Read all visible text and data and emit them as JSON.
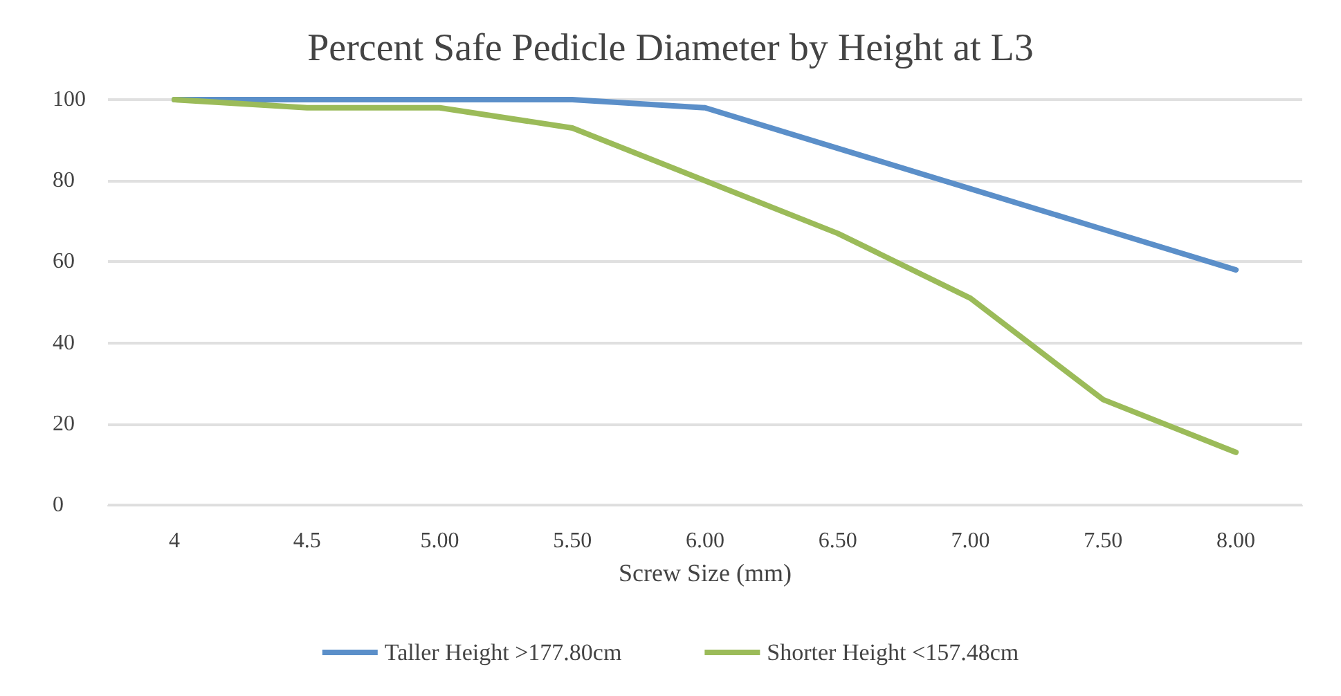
{
  "chart_data": {
    "type": "line",
    "title": "Percent Safe Pedicle Diameter by Height at L3",
    "xlabel": "Screw Size (mm)",
    "categories": [
      "4",
      "4.5",
      "5.00",
      "5.50",
      "6.00",
      "6.50",
      "7.00",
      "7.50",
      "8.00"
    ],
    "series": [
      {
        "name": "Taller Height >177.80cm",
        "color": "#5b8fc9",
        "values": [
          100,
          100,
          100,
          100,
          98,
          88,
          78,
          68,
          58
        ]
      },
      {
        "name": "Shorter Height <157.48cm",
        "color": "#9bbb59",
        "values": [
          100,
          98,
          98,
          93,
          80,
          67,
          51,
          26,
          13
        ]
      }
    ],
    "ylim": [
      0,
      100
    ],
    "yticks": [
      0,
      20,
      40,
      60,
      80,
      100
    ],
    "grid": "y",
    "legend": "bottom",
    "marker": "none",
    "line_style": "solid"
  }
}
